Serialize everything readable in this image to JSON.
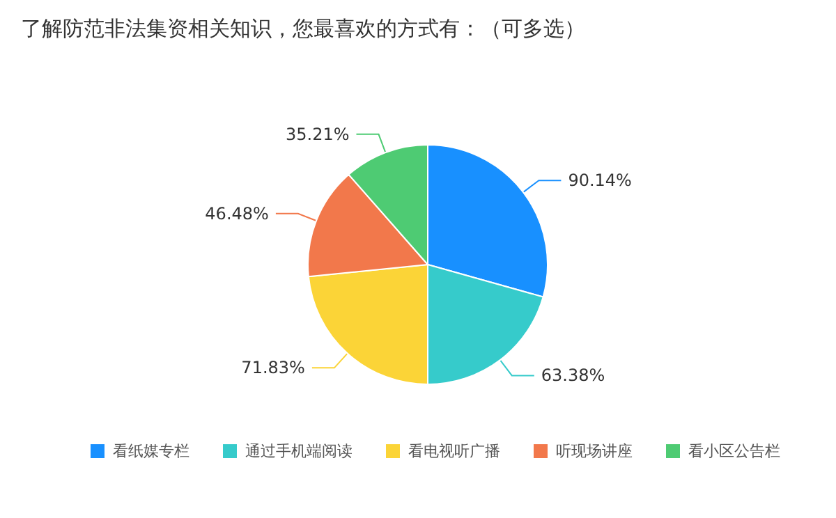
{
  "chart_data": {
    "type": "pie",
    "title": "了解防范非法集资相关知识，您最喜欢的方式有：（可多选）",
    "categories": [
      "看纸媒专栏",
      "通过手机端阅读",
      "看电视听广播",
      "听现场讲座",
      "看小区公告栏"
    ],
    "values": [
      90.14,
      63.38,
      71.83,
      46.48,
      35.21
    ],
    "colors": [
      "#1890ff",
      "#36cbcb",
      "#fbd437",
      "#f2784b",
      "#4ecb73"
    ],
    "value_labels": [
      "90.14%",
      "63.38%",
      "71.83%",
      "46.48%",
      "35.21%"
    ],
    "legend": "bottom"
  }
}
